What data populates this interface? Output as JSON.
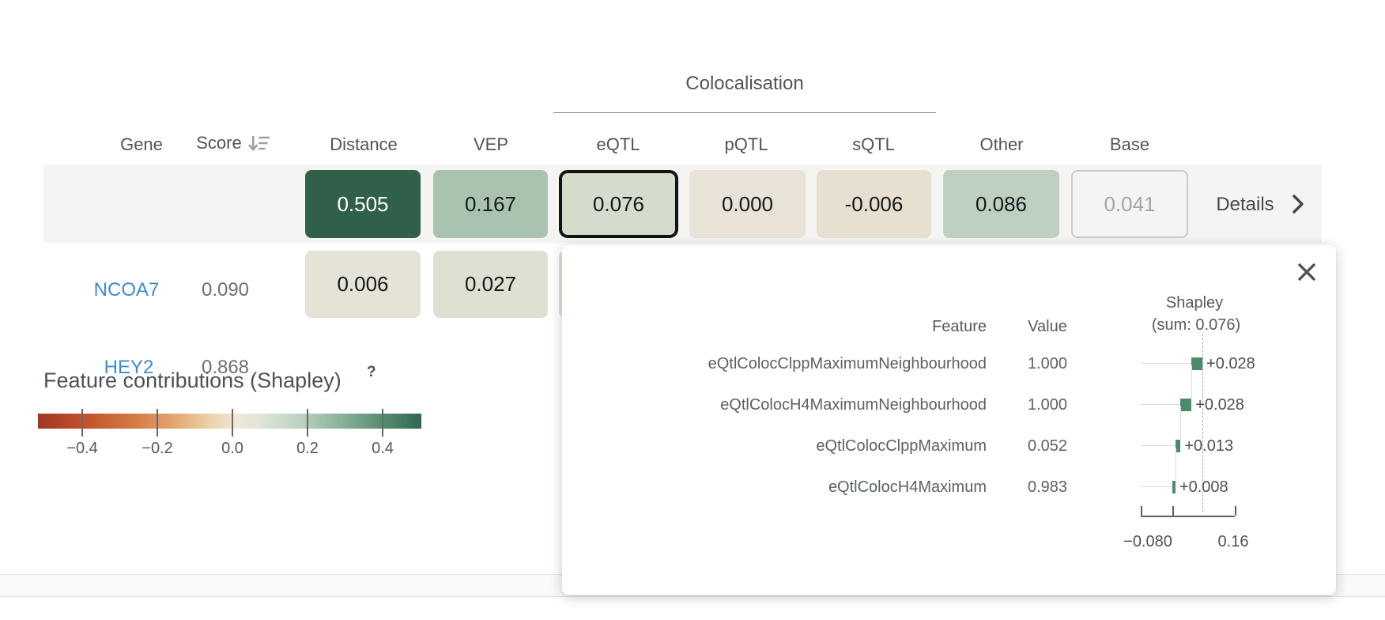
{
  "colors": {
    "link_blue": "#3e8cce",
    "row_bg": "#f4f4f3",
    "shapley_bar_green": "#4c8a6c",
    "selected_cell_border": "#131313"
  },
  "table": {
    "colocalisation_label": "Colocalisation",
    "headers": {
      "gene": "Gene",
      "score": "Score",
      "distance": "Distance",
      "vep": "VEP",
      "eqtl": "eQTL",
      "pqtl": "pQTL",
      "sqtl": "sQTL",
      "other": "Other",
      "base": "Base"
    },
    "rows": [
      {
        "gene": "HEY2",
        "score": "0.868",
        "distance": {
          "value": "0.505",
          "bg": "#30604a",
          "fg": "#ffffff"
        },
        "vep": {
          "value": "0.167",
          "bg": "#a9c3af",
          "fg": "#15181a"
        },
        "eqtl": {
          "value": "0.076",
          "bg": "#d3dccd",
          "fg": "#15181a"
        },
        "pqtl": {
          "value": "0.000",
          "bg": "#e8e2d7",
          "fg": "#15181a"
        },
        "sqtl": {
          "value": "-0.006",
          "bg": "#e7e0d1",
          "fg": "#15181a"
        },
        "other": {
          "value": "0.086",
          "bg": "#bed1c0",
          "fg": "#15181a"
        },
        "base": {
          "value": "0.041",
          "fg": "#a1a7ac"
        },
        "details_label": "Details"
      },
      {
        "gene": "NCOA7",
        "score": "0.090",
        "distance": {
          "value": "0.006",
          "bg": "#e5e2d6",
          "fg": "#15181a"
        },
        "vep": {
          "value": "0.027",
          "bg": "#e0e0d2",
          "fg": "#15181a"
        },
        "eqtl": {
          "value": "",
          "bg": "#e8e2d7",
          "fg": "#15181a"
        }
      }
    ]
  },
  "legend": {
    "title": "Feature contributions (Shapley)",
    "help": "?",
    "ticks": [
      "−0.4",
      "−0.2",
      "0.0",
      "0.2",
      "0.4"
    ],
    "gradient": [
      "#a43523 0%",
      "#c1512b 12%",
      "#d47a44 25%",
      "#e3a971 36%",
      "#edd2ab 45%",
      "#efe8d8 52%",
      "#dfe5d8 58%",
      "#bdd3c2 68%",
      "#8fb59d 78%",
      "#5b8f74 89%",
      "#2f6850 100%"
    ]
  },
  "popup": {
    "feature_header": "Feature",
    "value_header": "Value",
    "shapley_header_line1": "Shapley",
    "shapley_header_line2": "(sum: 0.076)",
    "rows": [
      {
        "feature": "eQtlColocClppMaximumNeighbourhood",
        "value": "1.000",
        "shapley": "+0.028"
      },
      {
        "feature": "eQtlColocH4MaximumNeighbourhood",
        "value": "1.000",
        "shapley": "+0.028"
      },
      {
        "feature": "eQtlColocClppMaximum",
        "value": "0.052",
        "shapley": "+0.013"
      },
      {
        "feature": "eQtlColocH4Maximum",
        "value": "0.983",
        "shapley": "+0.008"
      }
    ],
    "axis": {
      "min_label": "−0.080",
      "max_label": "0.16"
    }
  }
}
